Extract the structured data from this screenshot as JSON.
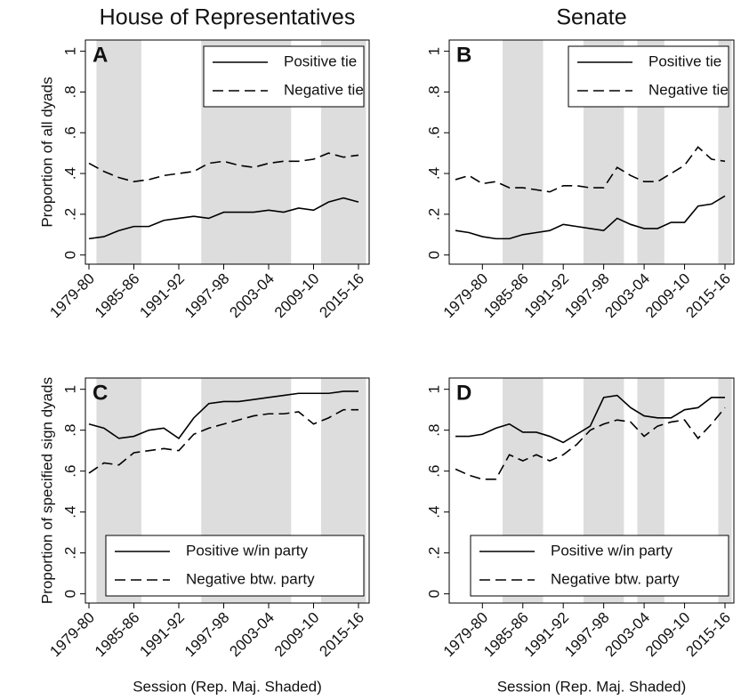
{
  "chart_data": [
    {
      "type": "line",
      "title": "House of Representatives",
      "label": "A",
      "ylabel": "Proportion of all dyads",
      "categories": [
        "1979-80",
        null,
        null,
        "1985-86",
        null,
        null,
        "1991-92",
        null,
        null,
        "1997-98",
        null,
        null,
        "2003-04",
        null,
        null,
        "2009-10",
        null,
        null,
        "2015-16"
      ],
      "shaded": [
        [
          1,
          3
        ],
        [
          8,
          13
        ],
        [
          16,
          18
        ]
      ],
      "series": [
        {
          "name": "Positive tie",
          "color": "#000000",
          "dash": "solid",
          "values": [
            0.08,
            0.09,
            0.12,
            0.14,
            0.14,
            0.17,
            0.18,
            0.19,
            0.18,
            0.21,
            0.21,
            0.21,
            0.22,
            0.21,
            0.23,
            0.22,
            0.26,
            0.28,
            0.26
          ]
        },
        {
          "name": "Negative tie",
          "color": "#000000",
          "dash": "dashed",
          "values": [
            0.45,
            0.41,
            0.38,
            0.36,
            0.37,
            0.39,
            0.4,
            0.41,
            0.45,
            0.46,
            0.44,
            0.43,
            0.45,
            0.46,
            0.46,
            0.47,
            0.5,
            0.48,
            0.49
          ]
        }
      ],
      "ylim": [
        -0.045,
        1.055
      ],
      "yticks": [
        0,
        {
          "value": 0.2,
          "label": ".2"
        },
        {
          "value": 0.4,
          "label": ".4"
        },
        {
          "value": 0.6,
          "label": ".6"
        },
        {
          "value": 0.8,
          "label": ".8"
        },
        1
      ],
      "legend": "upper right",
      "shade_color": "#dddddd"
    },
    {
      "type": "line",
      "title": "Senate",
      "label": "B",
      "categories": [
        null,
        null,
        "1979-80",
        null,
        null,
        "1985-86",
        null,
        null,
        "1991-92",
        null,
        null,
        "1997-98",
        null,
        null,
        "2003-04",
        null,
        null,
        "2009-10",
        null,
        null,
        "2015-16"
      ],
      "shaded": [
        [
          4,
          6
        ],
        [
          10,
          12
        ],
        [
          14,
          15
        ],
        [
          20,
          20
        ]
      ],
      "series": [
        {
          "name": "Positive tie",
          "color": "#000000",
          "dash": "solid",
          "values": [
            0.12,
            0.11,
            0.09,
            0.08,
            0.08,
            0.1,
            0.11,
            0.12,
            0.15,
            0.14,
            0.13,
            0.12,
            0.18,
            0.15,
            0.13,
            0.13,
            0.16,
            0.16,
            0.24,
            0.25,
            0.29
          ]
        },
        {
          "name": "Negative tie",
          "color": "#000000",
          "dash": "dashed",
          "values": [
            0.37,
            0.39,
            0.35,
            0.36,
            0.33,
            0.33,
            0.32,
            0.31,
            0.34,
            0.34,
            0.33,
            0.33,
            0.43,
            0.39,
            0.36,
            0.36,
            0.4,
            0.44,
            0.53,
            0.47,
            0.46
          ]
        }
      ],
      "ylim": [
        -0.045,
        1.055
      ],
      "yticks": [
        0,
        {
          "value": 0.2,
          "label": ".2"
        },
        {
          "value": 0.4,
          "label": ".4"
        },
        {
          "value": 0.6,
          "label": ".6"
        },
        {
          "value": 0.8,
          "label": ".8"
        },
        1
      ],
      "legend": "upper right",
      "shade_color": "#dddddd"
    },
    {
      "type": "line",
      "label": "C",
      "ylabel": "Proportion of specified sign dyads",
      "xlabel": "Session (Rep. Maj. Shaded)",
      "categories": [
        "1979-80",
        null,
        null,
        "1985-86",
        null,
        null,
        "1991-92",
        null,
        null,
        "1997-98",
        null,
        null,
        "2003-04",
        null,
        null,
        "2009-10",
        null,
        null,
        "2015-16"
      ],
      "shaded": [
        [
          1,
          3
        ],
        [
          8,
          13
        ],
        [
          16,
          18
        ]
      ],
      "series": [
        {
          "name": "Positive w/in party",
          "color": "#000000",
          "dash": "solid",
          "values": [
            0.83,
            0.81,
            0.76,
            0.77,
            0.8,
            0.81,
            0.76,
            0.86,
            0.93,
            0.94,
            0.94,
            0.95,
            0.96,
            0.97,
            0.98,
            0.98,
            0.98,
            0.99,
            0.99
          ]
        },
        {
          "name": "Negative btw. party",
          "color": "#000000",
          "dash": "dashed",
          "values": [
            0.59,
            0.64,
            0.63,
            0.69,
            0.7,
            0.71,
            0.7,
            0.78,
            0.81,
            0.83,
            0.85,
            0.87,
            0.88,
            0.88,
            0.89,
            0.83,
            0.86,
            0.9,
            0.9
          ]
        }
      ],
      "ylim": [
        -0.045,
        1.055
      ],
      "yticks": [
        0,
        {
          "value": 0.2,
          "label": ".2"
        },
        {
          "value": 0.4,
          "label": ".4"
        },
        {
          "value": 0.6,
          "label": ".6"
        },
        {
          "value": 0.8,
          "label": ".8"
        },
        1
      ],
      "legend": "lower right",
      "shade_color": "#dddddd"
    },
    {
      "type": "line",
      "label": "D",
      "xlabel": "Session (Rep. Maj. Shaded)",
      "categories": [
        null,
        null,
        "1979-80",
        null,
        null,
        "1985-86",
        null,
        null,
        "1991-92",
        null,
        null,
        "1997-98",
        null,
        null,
        "2003-04",
        null,
        null,
        "2009-10",
        null,
        null,
        "2015-16"
      ],
      "shaded": [
        [
          4,
          6
        ],
        [
          10,
          12
        ],
        [
          14,
          15
        ],
        [
          20,
          20
        ]
      ],
      "series": [
        {
          "name": "Positive w/in party",
          "color": "#000000",
          "dash": "solid",
          "values": [
            0.77,
            0.77,
            0.78,
            0.81,
            0.83,
            0.79,
            0.79,
            0.77,
            0.74,
            0.78,
            0.82,
            0.96,
            0.97,
            0.91,
            0.87,
            0.86,
            0.86,
            0.9,
            0.91,
            0.96,
            0.96
          ]
        },
        {
          "name": "Negative btw. party",
          "color": "#000000",
          "dash": "dashed",
          "values": [
            0.61,
            0.58,
            0.56,
            0.56,
            0.68,
            0.65,
            0.68,
            0.65,
            0.68,
            0.73,
            0.8,
            0.83,
            0.85,
            0.84,
            0.77,
            0.82,
            0.84,
            0.85,
            0.76,
            0.83,
            0.91
          ]
        }
      ],
      "ylim": [
        -0.045,
        1.055
      ],
      "yticks": [
        0,
        {
          "value": 0.2,
          "label": ".2"
        },
        {
          "value": 0.4,
          "label": ".4"
        },
        {
          "value": 0.6,
          "label": ".6"
        },
        {
          "value": 0.8,
          "label": ".8"
        },
        1
      ],
      "legend": "lower right",
      "shade_color": "#dddddd"
    }
  ]
}
